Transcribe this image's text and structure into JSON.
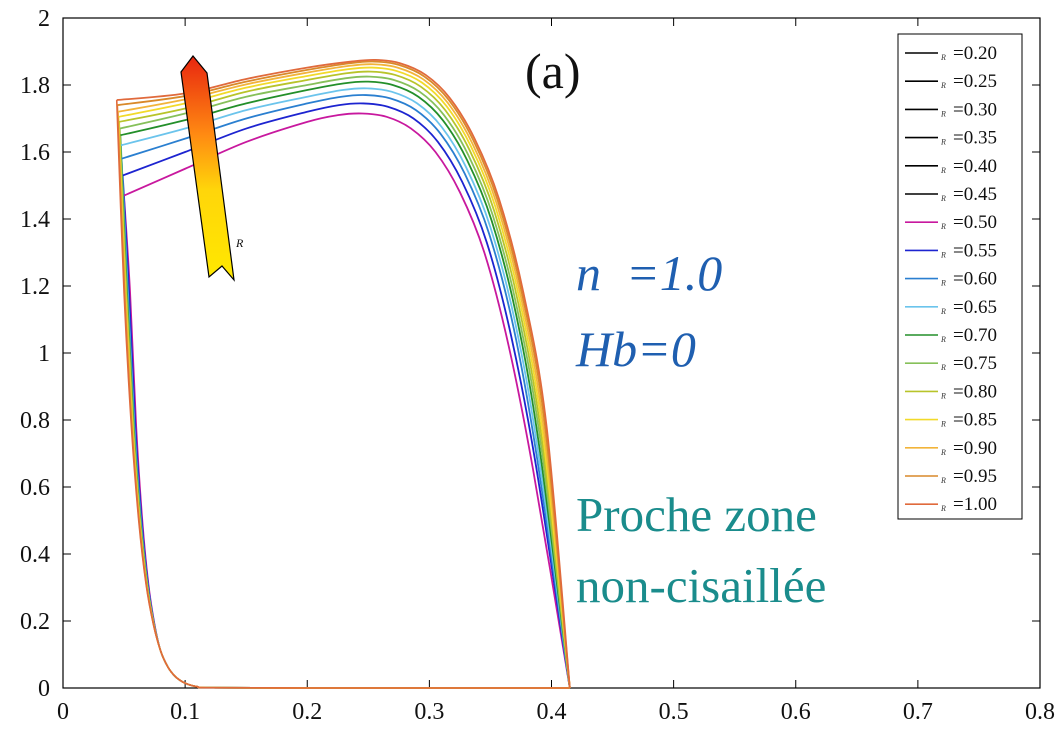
{
  "chart_data": {
    "type": "line",
    "panel_label": "(a)",
    "annotations": {
      "n_text": "n  =1.0",
      "hb_text": "Hb=0",
      "zone_line1": "Proche zone",
      "zone_line2": "non-cisaillée",
      "arrow_label": "R",
      "legend_symbol": "R"
    },
    "xlim": [
      0,
      0.8
    ],
    "ylim": [
      0,
      2
    ],
    "x_ticks": [
      "0",
      "0.1",
      "0.2",
      "0.3",
      "0.4",
      "0.5",
      "0.6",
      "0.7",
      "0.8"
    ],
    "y_ticks": [
      "0",
      "0.2",
      "0.4",
      "0.6",
      "0.8",
      "1",
      "1.2",
      "1.4",
      "1.6",
      "1.8",
      "2"
    ],
    "grid": false,
    "legend_position": "top-right",
    "colors": {
      "axis": "#000000",
      "param_text": "#1f5fb0",
      "zone_text": "#1a8c8c",
      "arrow_top": "#e8260f",
      "arrow_bottom": "#ffe800"
    },
    "series": [
      {
        "name": "=0.20",
        "color": "#000000",
        "visible": false,
        "x": [],
        "y": []
      },
      {
        "name": "=0.25",
        "color": "#000000",
        "visible": false,
        "x": [],
        "y": []
      },
      {
        "name": "=0.30",
        "color": "#000000",
        "visible": false,
        "x": [],
        "y": []
      },
      {
        "name": "=0.35",
        "color": "#000000",
        "visible": false,
        "x": [],
        "y": []
      },
      {
        "name": "=0.40",
        "color": "#000000",
        "visible": false,
        "x": [],
        "y": []
      },
      {
        "name": "=0.45",
        "color": "#000000",
        "visible": false,
        "x": [],
        "y": []
      },
      {
        "name": "=0.50",
        "color": "#c8189e",
        "visible": true,
        "x": [
          0.05,
          0.1,
          0.15,
          0.2,
          0.225,
          0.245,
          0.265,
          0.285,
          0.305,
          0.325,
          0.345,
          0.365,
          0.385,
          0.415
        ],
        "y": [
          1.47,
          1.55,
          1.63,
          1.69,
          1.71,
          1.715,
          1.705,
          1.67,
          1.6,
          1.48,
          1.3,
          1.02,
          0.65,
          0.0
        ]
      },
      {
        "name": "=0.55",
        "color": "#1d24d0",
        "visible": true,
        "x": [
          0.049,
          0.1,
          0.15,
          0.2,
          0.226,
          0.246,
          0.266,
          0.287,
          0.307,
          0.327,
          0.347,
          0.367,
          0.387,
          0.415
        ],
        "y": [
          1.53,
          1.6,
          1.67,
          1.72,
          1.74,
          1.745,
          1.735,
          1.7,
          1.63,
          1.51,
          1.33,
          1.05,
          0.67,
          0.0
        ]
      },
      {
        "name": "=0.60",
        "color": "#2a7fd0",
        "visible": true,
        "x": [
          0.048,
          0.1,
          0.15,
          0.2,
          0.228,
          0.248,
          0.268,
          0.289,
          0.309,
          0.329,
          0.349,
          0.369,
          0.388,
          0.415
        ],
        "y": [
          1.58,
          1.64,
          1.7,
          1.745,
          1.765,
          1.77,
          1.76,
          1.725,
          1.655,
          1.535,
          1.355,
          1.075,
          0.69,
          0.0
        ]
      },
      {
        "name": "=0.65",
        "color": "#6bc4ec",
        "visible": true,
        "x": [
          0.0475,
          0.1,
          0.15,
          0.2,
          0.229,
          0.249,
          0.269,
          0.29,
          0.31,
          0.33,
          0.35,
          0.37,
          0.389,
          0.415
        ],
        "y": [
          1.62,
          1.67,
          1.725,
          1.765,
          1.785,
          1.79,
          1.78,
          1.745,
          1.675,
          1.555,
          1.375,
          1.095,
          0.705,
          0.0
        ]
      },
      {
        "name": "=0.70",
        "color": "#238f2a",
        "visible": true,
        "x": [
          0.047,
          0.1,
          0.15,
          0.2,
          0.23,
          0.25,
          0.27,
          0.291,
          0.311,
          0.331,
          0.351,
          0.371,
          0.39,
          0.415
        ],
        "y": [
          1.65,
          1.695,
          1.745,
          1.785,
          1.805,
          1.81,
          1.8,
          1.765,
          1.695,
          1.575,
          1.395,
          1.115,
          0.72,
          0.0
        ]
      },
      {
        "name": "=0.75",
        "color": "#86c05a",
        "visible": true,
        "x": [
          0.0465,
          0.1,
          0.15,
          0.2,
          0.231,
          0.251,
          0.271,
          0.292,
          0.312,
          0.332,
          0.352,
          0.372,
          0.391,
          0.415
        ],
        "y": [
          1.67,
          1.715,
          1.765,
          1.8,
          1.82,
          1.825,
          1.815,
          1.78,
          1.71,
          1.59,
          1.41,
          1.13,
          0.735,
          0.0
        ]
      },
      {
        "name": "=0.80",
        "color": "#b8c42a",
        "visible": true,
        "x": [
          0.046,
          0.1,
          0.15,
          0.2,
          0.232,
          0.252,
          0.272,
          0.293,
          0.313,
          0.333,
          0.353,
          0.373,
          0.392,
          0.415
        ],
        "y": [
          1.69,
          1.73,
          1.78,
          1.815,
          1.835,
          1.84,
          1.83,
          1.795,
          1.725,
          1.605,
          1.425,
          1.145,
          0.745,
          0.0
        ]
      },
      {
        "name": "=0.85",
        "color": "#f2da2a",
        "visible": true,
        "x": [
          0.0455,
          0.1,
          0.15,
          0.2,
          0.233,
          0.253,
          0.273,
          0.294,
          0.314,
          0.334,
          0.354,
          0.374,
          0.393,
          0.415
        ],
        "y": [
          1.705,
          1.745,
          1.792,
          1.827,
          1.847,
          1.852,
          1.842,
          1.807,
          1.737,
          1.617,
          1.437,
          1.157,
          0.755,
          0.0
        ]
      },
      {
        "name": "=0.90",
        "color": "#f2b43a",
        "visible": true,
        "x": [
          0.045,
          0.1,
          0.15,
          0.2,
          0.234,
          0.254,
          0.274,
          0.295,
          0.315,
          0.335,
          0.355,
          0.375,
          0.394,
          0.415
        ],
        "y": [
          1.72,
          1.757,
          1.802,
          1.837,
          1.857,
          1.862,
          1.852,
          1.817,
          1.747,
          1.627,
          1.447,
          1.167,
          0.765,
          0.0
        ]
      },
      {
        "name": "=0.95",
        "color": "#d9892a",
        "visible": true,
        "x": [
          0.0445,
          0.1,
          0.15,
          0.2,
          0.235,
          0.255,
          0.275,
          0.296,
          0.316,
          0.336,
          0.356,
          0.376,
          0.395,
          0.415
        ],
        "y": [
          1.74,
          1.767,
          1.81,
          1.845,
          1.865,
          1.87,
          1.86,
          1.825,
          1.755,
          1.635,
          1.455,
          1.175,
          0.775,
          0.0
        ]
      },
      {
        "name": "=1.00",
        "color": "#e06a3c",
        "visible": true,
        "x": [
          0.044,
          0.1,
          0.15,
          0.2,
          0.236,
          0.256,
          0.276,
          0.297,
          0.317,
          0.337,
          0.357,
          0.377,
          0.396,
          0.415
        ],
        "y": [
          1.755,
          1.775,
          1.818,
          1.852,
          1.87,
          1.875,
          1.865,
          1.83,
          1.76,
          1.64,
          1.46,
          1.18,
          0.78,
          0.0
        ]
      }
    ],
    "lower_branch": {
      "description_free": true,
      "x": [
        0.044,
        0.05,
        0.056,
        0.062,
        0.068,
        0.074,
        0.08,
        0.086,
        0.092,
        0.098,
        0.104,
        0.11,
        0.12,
        0.2,
        0.3,
        0.415
      ],
      "y": [
        1.72,
        1.18,
        0.78,
        0.5,
        0.31,
        0.19,
        0.11,
        0.062,
        0.034,
        0.018,
        0.009,
        0.004,
        0.001,
        0.0,
        0.0,
        0.0
      ]
    }
  }
}
